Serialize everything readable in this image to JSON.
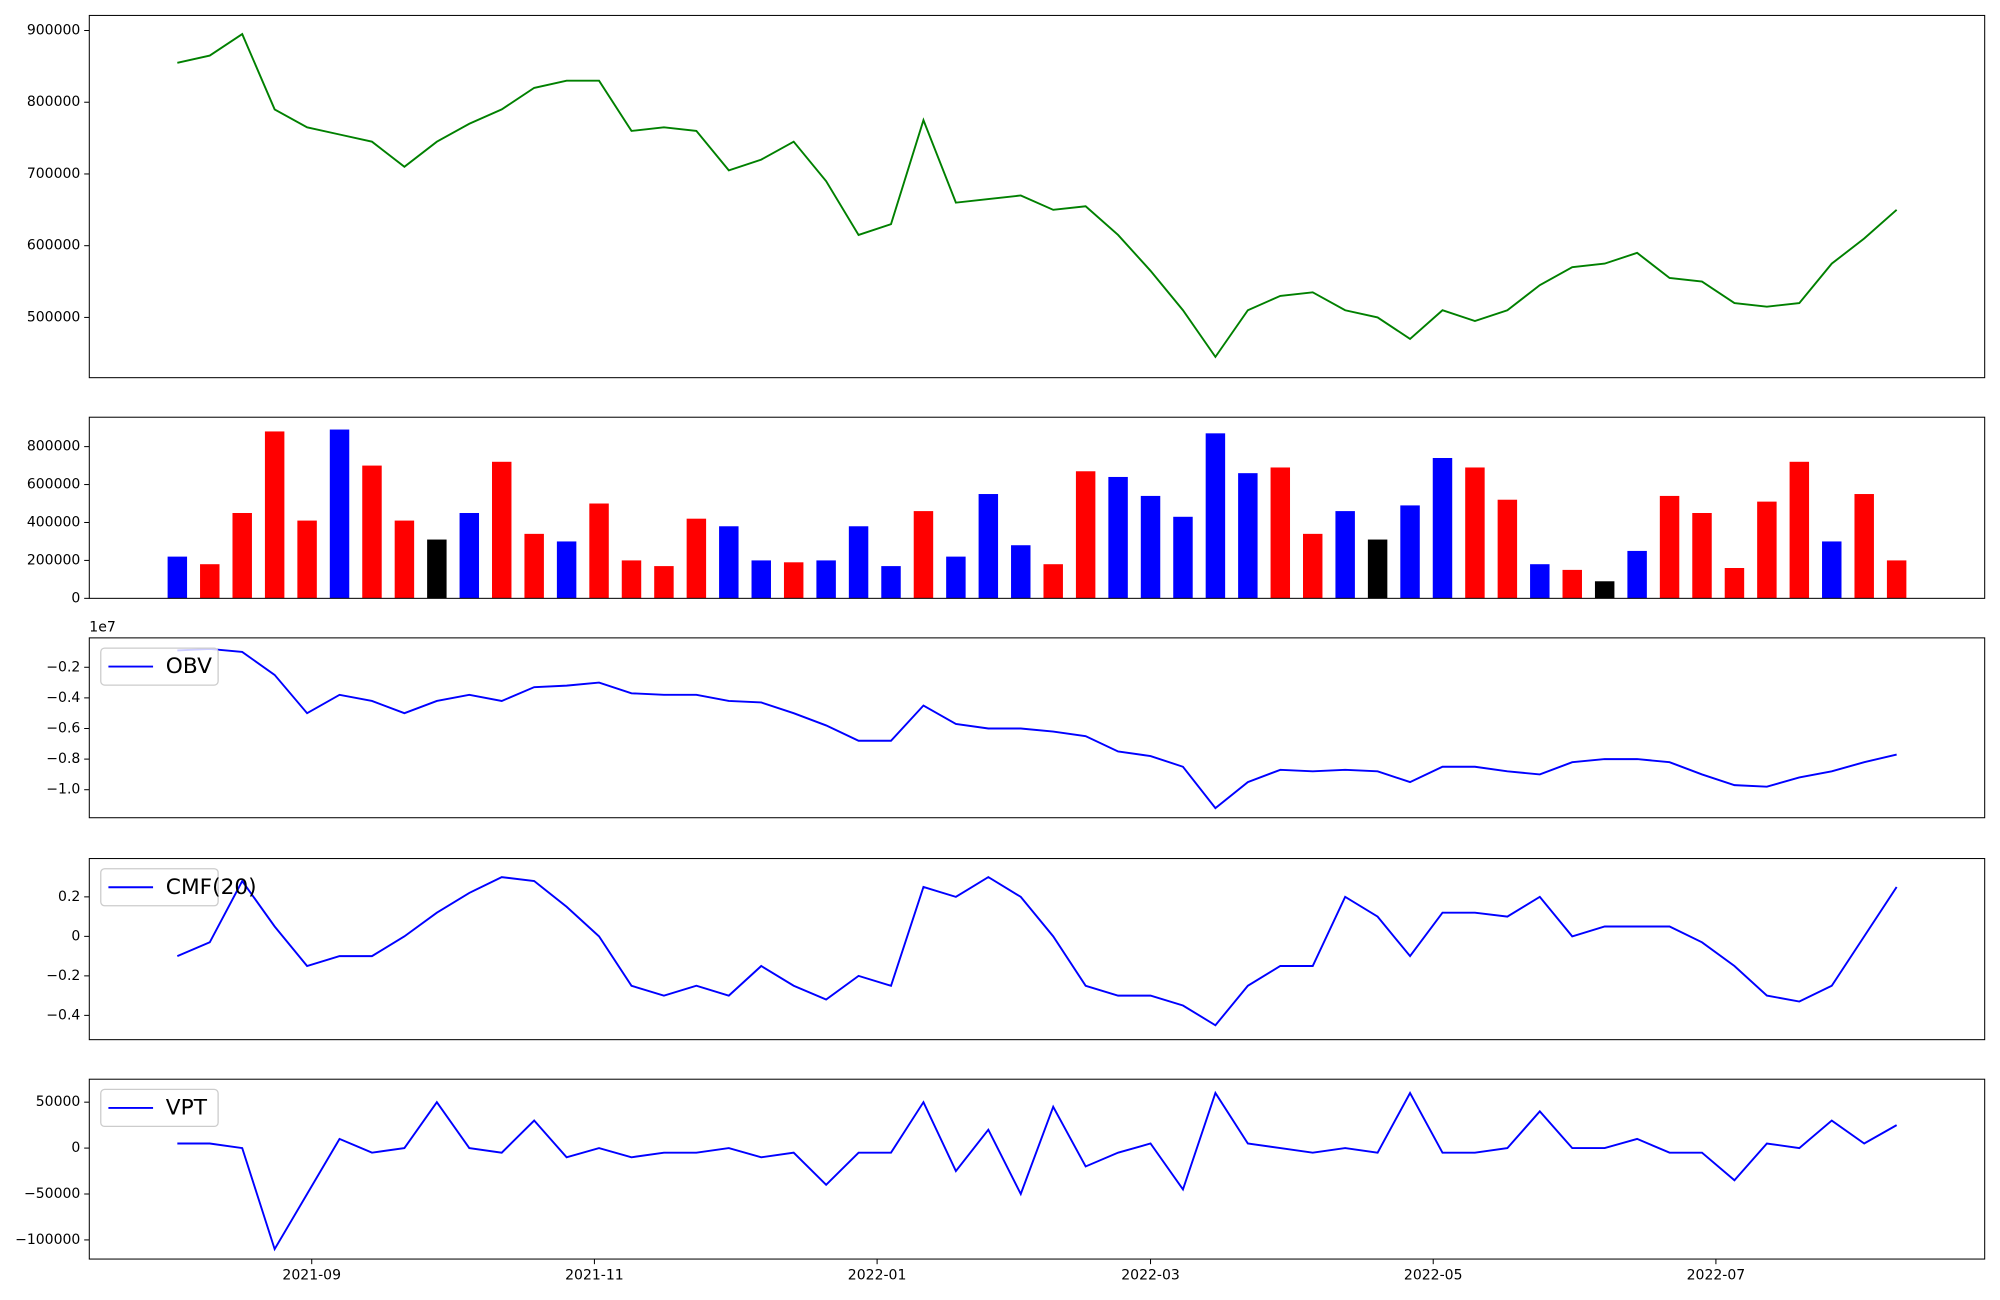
{
  "chart_data": {
    "type": "multi-panel",
    "x": [
      18842,
      18849,
      18856,
      18863,
      18870,
      18877,
      18884,
      18891,
      18898,
      18905,
      18912,
      18919,
      18926,
      18933,
      18940,
      18947,
      18954,
      18961,
      18968,
      18975,
      18982,
      18989,
      18996,
      19003,
      19010,
      19017,
      19024,
      19031,
      19038,
      19045,
      19052,
      19059,
      19066,
      19073,
      19080,
      19087,
      19094,
      19101,
      19108,
      19115,
      19122,
      19129,
      19136,
      19143,
      19150,
      19157,
      19164,
      19171,
      19178,
      19185,
      19192,
      19199,
      19206,
      19213
    ],
    "xlim": [
      18823,
      19232
    ],
    "xticks": [
      {
        "value": 18871,
        "label": "2021-09"
      },
      {
        "value": 18932,
        "label": "2021-11"
      },
      {
        "value": 18993,
        "label": "2022-01"
      },
      {
        "value": 19052,
        "label": "2022-03"
      },
      {
        "value": 19113,
        "label": "2022-05"
      },
      {
        "value": 19174,
        "label": "2022-07"
      }
    ],
    "panels": [
      {
        "type": "line",
        "color": "#008000",
        "values": [
          855000,
          865000,
          895000,
          790000,
          765000,
          755000,
          745000,
          710000,
          745000,
          770000,
          790000,
          820000,
          830000,
          830000,
          760000,
          765000,
          760000,
          705000,
          720000,
          745000,
          690000,
          615000,
          630000,
          775000,
          660000,
          665000,
          670000,
          650000,
          655000,
          615000,
          565000,
          510000,
          445000,
          510000,
          530000,
          535000,
          510000,
          500000,
          470000,
          510000,
          495000,
          510000,
          545000,
          570000,
          575000,
          590000,
          555000,
          550000,
          520000,
          515000,
          520000,
          575000,
          610000,
          650000
        ],
        "ylim": [
          416000,
          921000
        ],
        "yticks": [
          500000,
          600000,
          700000,
          800000,
          900000
        ]
      },
      {
        "type": "bar",
        "values": [
          220000,
          180000,
          450000,
          880000,
          410000,
          890000,
          700000,
          410000,
          310000,
          450000,
          720000,
          340000,
          300000,
          500000,
          200000,
          170000,
          420000,
          380000,
          200000,
          190000,
          200000,
          380000,
          170000,
          460000,
          220000,
          550000,
          280000,
          180000,
          670000,
          640000,
          540000,
          430000,
          870000,
          660000,
          690000,
          340000,
          460000,
          310000,
          490000,
          740000,
          690000,
          520000,
          180000,
          150000,
          90000,
          250000,
          540000,
          450000,
          160000,
          510000,
          720000,
          300000,
          550000,
          200000
        ],
        "colors": [
          "#0000ff",
          "#ff0000",
          "#ff0000",
          "#ff0000",
          "#ff0000",
          "#0000ff",
          "#ff0000",
          "#ff0000",
          "#000000",
          "#0000ff",
          "#ff0000",
          "#ff0000",
          "#0000ff",
          "#ff0000",
          "#ff0000",
          "#ff0000",
          "#ff0000",
          "#0000ff",
          "#0000ff",
          "#ff0000",
          "#0000ff",
          "#0000ff",
          "#0000ff",
          "#ff0000",
          "#0000ff",
          "#0000ff",
          "#0000ff",
          "#ff0000",
          "#ff0000",
          "#0000ff",
          "#0000ff",
          "#0000ff",
          "#0000ff",
          "#0000ff",
          "#ff0000",
          "#ff0000",
          "#0000ff",
          "#000000",
          "#0000ff",
          "#0000ff",
          "#ff0000",
          "#ff0000",
          "#0000ff",
          "#ff0000",
          "#000000",
          "#0000ff",
          "#ff0000",
          "#ff0000",
          "#ff0000",
          "#ff0000",
          "#ff0000",
          "#0000ff",
          "#ff0000",
          "#ff0000"
        ],
        "ylim": [
          0,
          955000
        ],
        "yticks": [
          0,
          200000,
          400000,
          600000,
          800000
        ]
      },
      {
        "type": "line",
        "offset_label": "1e7",
        "legend": "upper left",
        "series": [
          {
            "name": "OBV",
            "color": "#0000ff",
            "values": [
              -0.09,
              -0.08,
              -0.1,
              -0.25,
              -0.5,
              -0.38,
              -0.42,
              -0.5,
              -0.42,
              -0.38,
              -0.42,
              -0.33,
              -0.32,
              -0.3,
              -0.37,
              -0.38,
              -0.38,
              -0.42,
              -0.43,
              -0.5,
              -0.58,
              -0.68,
              -0.68,
              -0.45,
              -0.57,
              -0.6,
              -0.6,
              -0.62,
              -0.65,
              -0.75,
              -0.78,
              -0.85,
              -1.12,
              -0.95,
              -0.87,
              -0.88,
              -0.87,
              -0.88,
              -0.95,
              -0.85,
              -0.85,
              -0.88,
              -0.9,
              -0.82,
              -0.8,
              -0.8,
              -0.82,
              -0.9,
              -0.97,
              -0.98,
              -0.92,
              -0.88,
              -0.82,
              -0.77
            ]
          }
        ],
        "ylim": [
          -1.183,
          -0.008
        ],
        "yticks": [
          {
            "value": -1.0,
            "label": "−1.0"
          },
          {
            "value": -0.8,
            "label": "−0.8"
          },
          {
            "value": -0.6,
            "label": "−0.6"
          },
          {
            "value": -0.4,
            "label": "−0.4"
          },
          {
            "value": -0.2,
            "label": "−0.2"
          }
        ]
      },
      {
        "type": "line",
        "legend": "upper left",
        "series": [
          {
            "name": "CMF(20)",
            "color": "#0000ff",
            "values": [
              -0.1,
              -0.03,
              0.28,
              0.05,
              -0.15,
              -0.1,
              -0.1,
              0.0,
              0.12,
              0.22,
              0.3,
              0.28,
              0.15,
              0.0,
              -0.25,
              -0.3,
              -0.25,
              -0.3,
              -0.15,
              -0.25,
              -0.32,
              -0.2,
              -0.25,
              0.25,
              0.2,
              0.3,
              0.2,
              0.0,
              -0.25,
              -0.3,
              -0.3,
              -0.35,
              -0.45,
              -0.25,
              -0.15,
              -0.15,
              0.2,
              0.1,
              -0.1,
              0.12,
              0.12,
              0.1,
              0.2,
              0.0,
              0.05,
              0.05,
              0.05,
              -0.03,
              -0.15,
              -0.3,
              -0.33,
              -0.25,
              0.0,
              0.25
            ]
          }
        ],
        "ylim": [
          -0.523,
          0.394
        ],
        "yticks": [
          {
            "value": -0.4,
            "label": "−0.4"
          },
          {
            "value": -0.2,
            "label": "−0.2"
          },
          0.0,
          0.2
        ]
      },
      {
        "type": "line",
        "legend": "upper left",
        "series": [
          {
            "name": "VPT",
            "color": "#0000ff",
            "values": [
              5000,
              5000,
              0,
              -110000,
              -50000,
              10000,
              -5000,
              0,
              50000,
              0,
              -5000,
              30000,
              -10000,
              0,
              -10000,
              -5000,
              -5000,
              0,
              -10000,
              -5000,
              -40000,
              -5000,
              -5000,
              50000,
              -25000,
              20000,
              -50000,
              45000,
              -20000,
              -5000,
              5000,
              -45000,
              60000,
              5000,
              0,
              -5000,
              0,
              -5000,
              60000,
              -5000,
              -5000,
              0,
              40000,
              0,
              0,
              10000,
              -5000,
              -5000,
              -35000,
              5000,
              0,
              30000,
              5000,
              25000
            ]
          }
        ],
        "ylim": [
          -120833,
          75000
        ],
        "yticks": [
          {
            "value": -100000,
            "label": "−100000"
          },
          {
            "value": -50000,
            "label": "−50000"
          },
          0,
          50000
        ]
      }
    ]
  }
}
